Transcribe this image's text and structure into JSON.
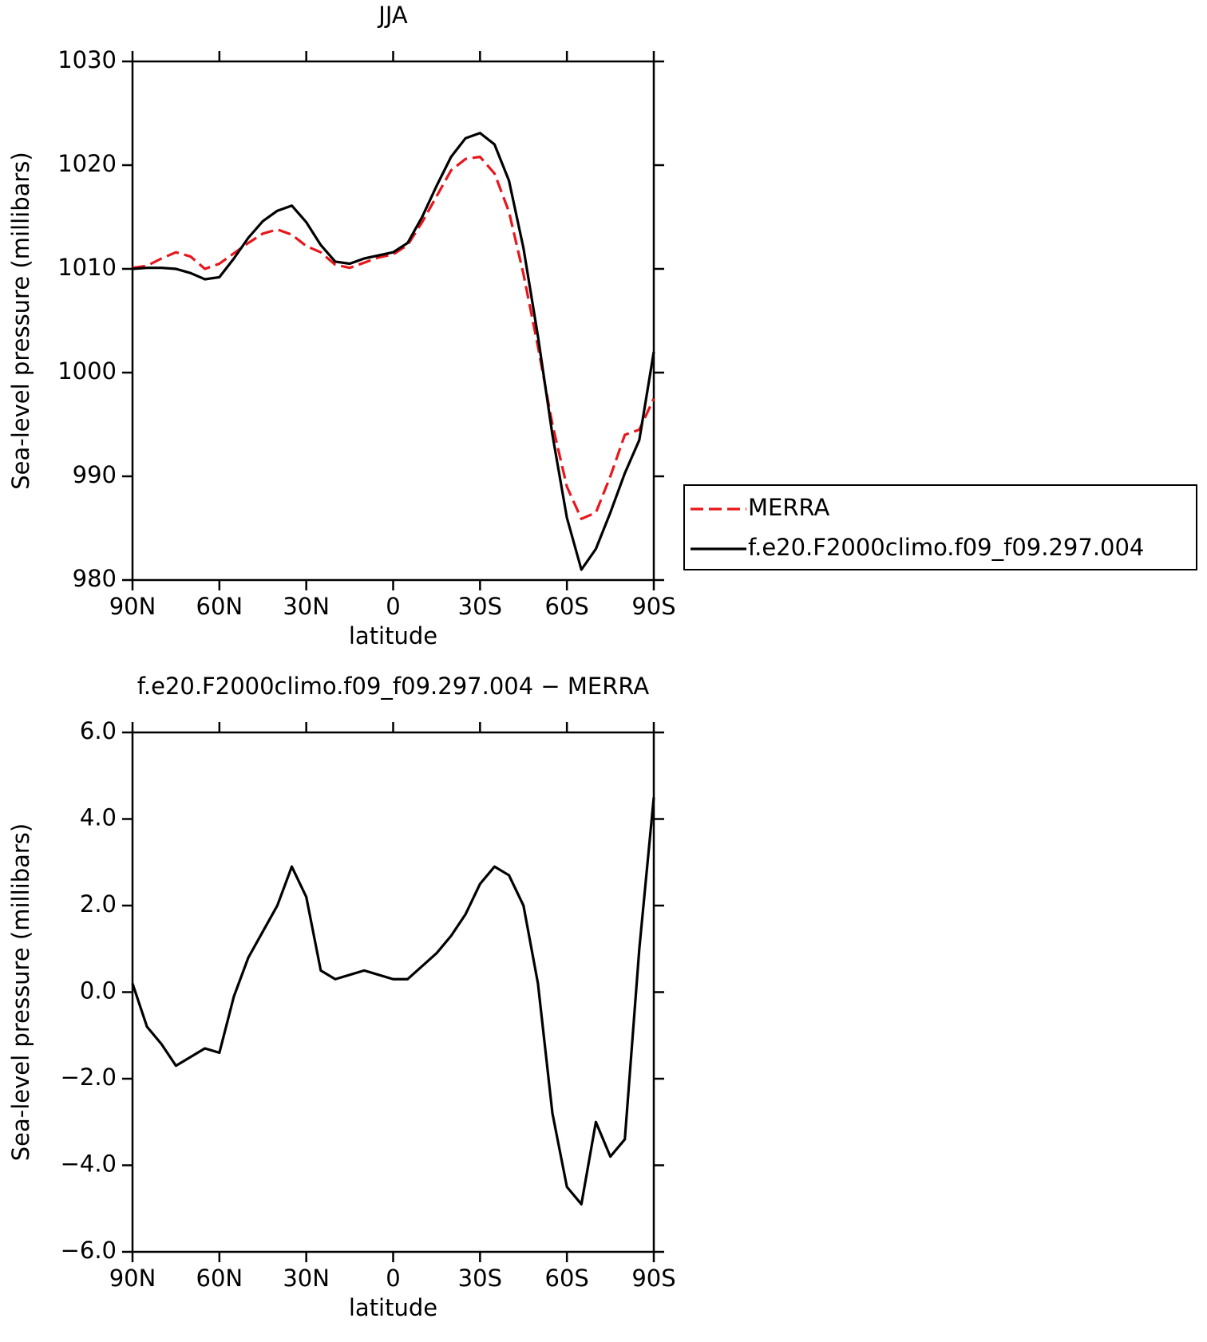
{
  "chart_data": [
    {
      "type": "line",
      "title": "JJA",
      "xlabel": "latitude",
      "ylabel": "Sea-level pressure (millibars)",
      "x": [
        90,
        85,
        80,
        75,
        70,
        65,
        60,
        55,
        50,
        45,
        40,
        35,
        30,
        25,
        20,
        15,
        10,
        5,
        0,
        -5,
        -10,
        -15,
        -20,
        -25,
        -30,
        -35,
        -40,
        -45,
        -50,
        -55,
        -60,
        -65,
        -70,
        -75,
        -80,
        -85,
        -90
      ],
      "xlim": [
        90,
        -90
      ],
      "xticks": [
        {
          "value": 90,
          "label": "90N"
        },
        {
          "value": 60,
          "label": "60N"
        },
        {
          "value": 30,
          "label": "30N"
        },
        0,
        {
          "value": -30,
          "label": "30S"
        },
        {
          "value": -60,
          "label": "60S"
        },
        {
          "value": -90,
          "label": "90S"
        }
      ],
      "ylim": [
        980,
        1030
      ],
      "yticks": [
        980,
        990,
        1000,
        1010,
        1020,
        1030
      ],
      "series": [
        {
          "name": "MERRA",
          "color": "#e8161b",
          "dash": true,
          "values": [
            1010.1,
            1010.3,
            1011.0,
            1011.6,
            1011.2,
            1010.0,
            1010.5,
            1011.5,
            1012.5,
            1013.4,
            1013.8,
            1013.3,
            1012.2,
            1011.6,
            1010.4,
            1010.1,
            1010.6,
            1011.1,
            1011.4,
            1012.3,
            1014.5,
            1017.0,
            1019.5,
            1020.6,
            1020.8,
            1019.2,
            1015.5,
            1009.5,
            1002.5,
            995.0,
            989.0,
            985.9,
            986.5,
            990.0,
            994.0,
            994.5,
            997.5
          ]
        },
        {
          "name": "f.e20.F2000climo.f09_f09.297.004",
          "color": "#000000",
          "dash": false,
          "values": [
            1010.0,
            1010.1,
            1010.1,
            1010.0,
            1009.6,
            1009.0,
            1009.2,
            1011.0,
            1013.0,
            1014.6,
            1015.6,
            1016.1,
            1014.5,
            1012.3,
            1010.7,
            1010.5,
            1011.0,
            1011.3,
            1011.6,
            1012.5,
            1015.0,
            1018.0,
            1020.8,
            1022.6,
            1023.1,
            1022.0,
            1018.5,
            1012.0,
            1003.5,
            994.0,
            986.0,
            981.0,
            983.0,
            986.5,
            990.3,
            993.5,
            1002.0
          ]
        }
      ],
      "legend": "outside right"
    },
    {
      "type": "line",
      "title": "f.e20.F2000climo.f09_f09.297.004 − MERRA",
      "xlabel": "latitude",
      "ylabel": "Sea-level pressure (millibars)",
      "x": [
        90,
        85,
        80,
        75,
        70,
        65,
        60,
        55,
        50,
        45,
        40,
        35,
        30,
        25,
        20,
        15,
        10,
        5,
        0,
        -5,
        -10,
        -15,
        -20,
        -25,
        -30,
        -35,
        -40,
        -45,
        -50,
        -55,
        -60,
        -65,
        -70,
        -75,
        -80,
        -85,
        -90
      ],
      "xlim": [
        90,
        -90
      ],
      "xticks": [
        {
          "value": 90,
          "label": "90N"
        },
        {
          "value": 60,
          "label": "60N"
        },
        {
          "value": 30,
          "label": "30N"
        },
        0,
        {
          "value": -30,
          "label": "30S"
        },
        {
          "value": -60,
          "label": "60S"
        },
        {
          "value": -90,
          "label": "90S"
        }
      ],
      "ylim": [
        -6,
        6
      ],
      "yticks": [
        {
          "value": -6,
          "label": "−6.0"
        },
        {
          "value": -4,
          "label": "−4.0"
        },
        {
          "value": -2,
          "label": "−2.0"
        },
        {
          "value": 0,
          "label": "0.0"
        },
        {
          "value": 2,
          "label": "2.0"
        },
        {
          "value": 4,
          "label": "4.0"
        },
        {
          "value": 6,
          "label": "6.0"
        }
      ],
      "series": [
        {
          "color": "#000000",
          "dash": false,
          "values": [
            0.2,
            -0.8,
            -1.2,
            -1.7,
            -1.5,
            -1.3,
            -1.4,
            -0.1,
            0.8,
            1.4,
            2.0,
            2.9,
            2.2,
            0.5,
            0.3,
            0.4,
            0.5,
            0.4,
            0.3,
            0.3,
            0.6,
            0.9,
            1.3,
            1.8,
            2.5,
            2.9,
            2.7,
            2.0,
            0.2,
            -2.8,
            -4.5,
            -4.9,
            -3.0,
            -3.8,
            -3.4,
            1.0,
            4.5
          ]
        }
      ]
    }
  ]
}
